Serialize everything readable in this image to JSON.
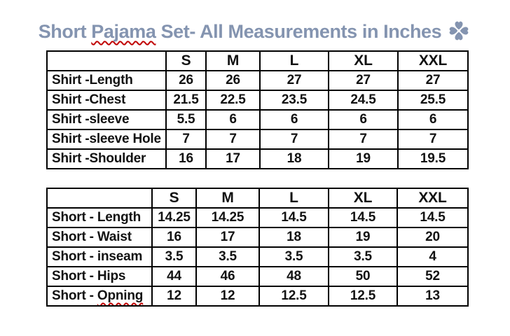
{
  "title": {
    "part1": "Short ",
    "misspelled_word": "Pajama",
    "part2": " Set- All Measurements in Inches",
    "icon": "four-hearts-clover-icon",
    "color": "#8494B0"
  },
  "colors": {
    "title_text": "#8494B0",
    "table_border": "#000000",
    "table_text": "#121212",
    "spellcheck_underline": "#C00000",
    "background": "#FFFFFF"
  },
  "tables": [
    {
      "name": "shirt-measurements",
      "columns": [
        "",
        "S",
        "M",
        "L",
        "XL",
        "XXL"
      ],
      "rows": [
        {
          "label": "Shirt -Length",
          "values": [
            "26",
            "26",
            "27",
            "27",
            "27"
          ]
        },
        {
          "label": "Shirt -Chest",
          "values": [
            "21.5",
            "22.5",
            "23.5",
            "24.5",
            "25.5"
          ]
        },
        {
          "label": "Shirt -sleeve",
          "values": [
            "5.5",
            "6",
            "6",
            "6",
            "6"
          ]
        },
        {
          "label": "Shirt -sleeve Hole",
          "values": [
            "7",
            "7",
            "7",
            "7",
            "7"
          ]
        },
        {
          "label": "Shirt -Shoulder",
          "values": [
            "16",
            "17",
            "18",
            "19",
            "19.5"
          ]
        }
      ]
    },
    {
      "name": "short-measurements",
      "columns": [
        "",
        "S",
        "M",
        "L",
        "XL",
        "XXL"
      ],
      "rows": [
        {
          "label": "Short - Length",
          "values": [
            "14.25",
            "14.25",
            "14.5",
            "14.5",
            "14.5"
          ]
        },
        {
          "label": "Short - Waist",
          "values": [
            "16",
            "17",
            "18",
            "19",
            "20"
          ]
        },
        {
          "label": "Short - inseam",
          "values": [
            "3.5",
            "3.5",
            "3.5",
            "3.5",
            "4"
          ]
        },
        {
          "label": "Short - Hips",
          "values": [
            "44",
            "46",
            "48",
            "50",
            "52"
          ]
        },
        {
          "label": "Short - Opning",
          "misspelled_word": "Opning",
          "values": [
            "12",
            "12",
            "12.5",
            "12.5",
            "13"
          ]
        }
      ]
    }
  ]
}
